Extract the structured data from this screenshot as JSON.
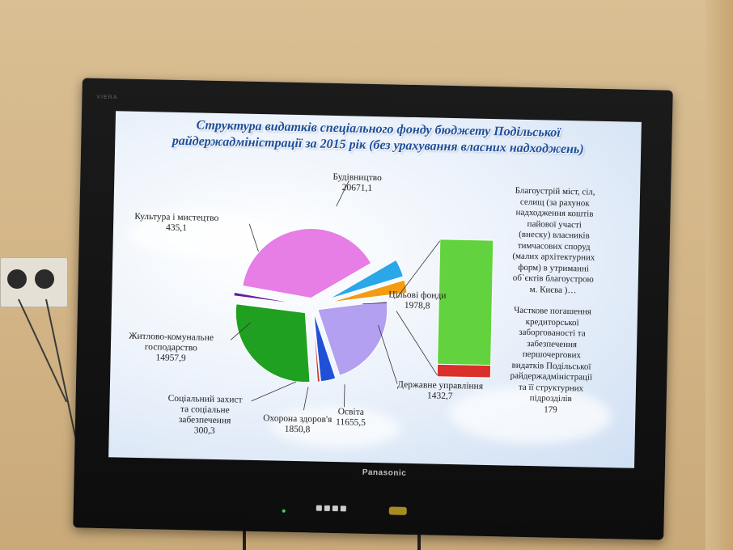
{
  "tv": {
    "brand": "Panasonic",
    "model_badge": "VIERA"
  },
  "chart_data": {
    "type": "pie",
    "title_line1": "Структура видатків спеціального фонду бюджету Подільської",
    "title_line2": "райдержадміністрації за 2015 рік (без урахування власних надходжень)",
    "series": [
      {
        "name": "Будівництво",
        "value": 20671.1,
        "value_label": "20671,1",
        "color": "#e67ee6"
      },
      {
        "name": "Цільові фонди",
        "value": 1978.8,
        "value_label": "1978,8",
        "color": "#2aa7e8"
      },
      {
        "name": "Державне управління",
        "value": 1432.7,
        "value_label": "1432,7",
        "color": "#f39c12"
      },
      {
        "name": "Освіта",
        "value": 11655.5,
        "value_label": "11655,5",
        "color": "#b3a0f0"
      },
      {
        "name": "Охорона здоров'я",
        "value": 1850.8,
        "value_label": "1850,8",
        "color": "#2050d8"
      },
      {
        "name": "Соціальний захист та соціальне забезпечення",
        "value": 300.3,
        "value_label": "300,3",
        "color": "#c0392b"
      },
      {
        "name": "Житлово-комунальне господарство",
        "value": 14957.9,
        "value_label": "14957,9",
        "color": "#20a020"
      },
      {
        "name": "Культура і мистецтво",
        "value": 435.1,
        "value_label": "435,1",
        "color": "#6a1b9a"
      }
    ],
    "breakdown": {
      "of": "Цільові фонди",
      "segments": [
        {
          "value": 1799.8,
          "color": "#62d33e"
        },
        {
          "value": 179,
          "color": "#d8302a"
        }
      ]
    }
  },
  "labels": {
    "construction": {
      "line1": "Будівництво",
      "line2": "20671,1"
    },
    "culture": {
      "line1": "Культура і мистецтво",
      "line2": "435,1"
    },
    "housing": {
      "line1": "Житлово-комунальне",
      "line2": "господарство",
      "line3": "14957,9"
    },
    "social": {
      "line1": "Соціальний захист",
      "line2": "та соціальне",
      "line3": "забезпечення",
      "line4": "300,3"
    },
    "health": {
      "line1": "Охорона здоров'я",
      "line2": "1850,8"
    },
    "education": {
      "line1": "Освіта",
      "line2": "11655,5"
    },
    "admin": {
      "line1": "Державне управління",
      "line2": "1432,7"
    },
    "target": {
      "line1": "Цільові фонди",
      "line2": "1978,8"
    }
  },
  "notes": {
    "improvement": [
      "Благоустрій міст, сіл,",
      "селищ (за рахунок",
      "надходження коштів",
      "пайової участі",
      "(внеску) власників",
      "тимчасових споруд",
      "(малих архітектурних",
      "форм) в утриманні",
      "об`єктів благоустрою",
      "м. Києва )…"
    ],
    "debt": [
      "Часткове погашення",
      "кредиторської",
      "заборгованості та",
      "забезпечення",
      "першочергових",
      "видатків Подільської",
      "райдержадміністрації",
      "та її структурних",
      "підрозділів",
      "179"
    ]
  }
}
